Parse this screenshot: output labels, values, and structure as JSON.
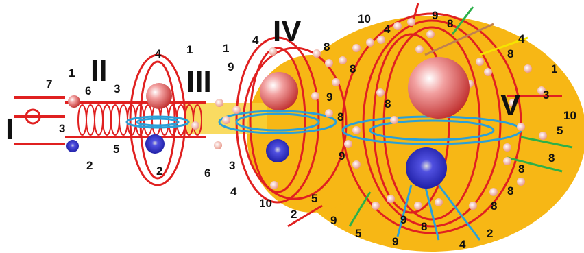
{
  "stages": [
    "I",
    "II",
    "III",
    "IV",
    "V"
  ],
  "labels": [
    "7",
    "1",
    "6",
    "3",
    "2",
    "4",
    "1",
    "3",
    "5",
    "2",
    "6",
    "1",
    "4",
    "9",
    "3",
    "4",
    "10",
    "2",
    "5",
    "9",
    "9",
    "8",
    "8",
    "9",
    "8",
    "8",
    "10",
    "4",
    "9",
    "8",
    "4",
    "8",
    "1",
    "3",
    "10",
    "5",
    "8",
    "8",
    "8",
    "8",
    "2",
    "4",
    "8",
    "9",
    "5",
    "9"
  ]
}
